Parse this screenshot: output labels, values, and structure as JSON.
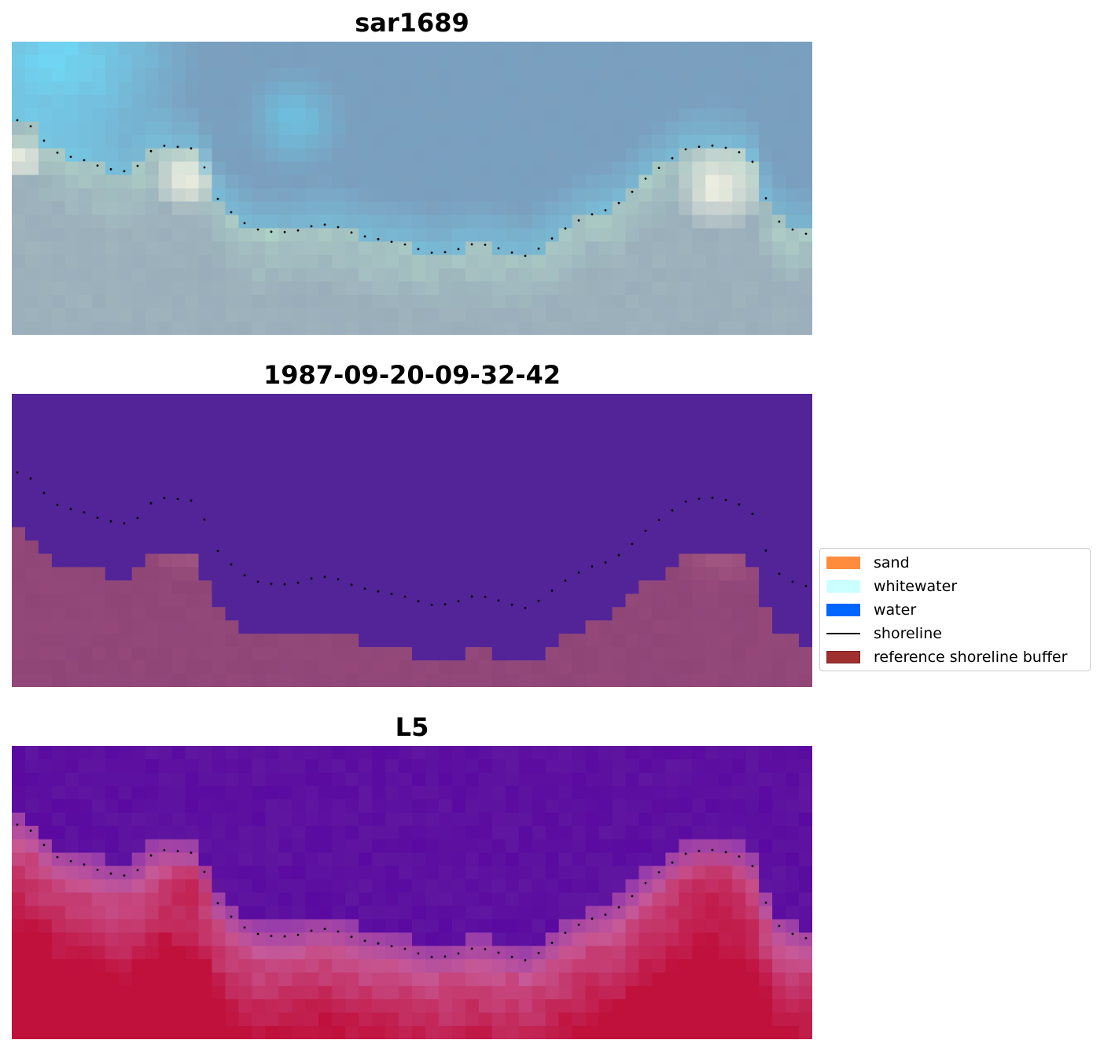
{
  "panels": [
    {
      "title": "sar1689",
      "style": "rgb"
    },
    {
      "title": "1987-09-20-09-32-42",
      "style": "classified"
    },
    {
      "title": "L5",
      "style": "index"
    }
  ],
  "legend": {
    "items": [
      {
        "label": "sand",
        "type": "patch",
        "color": "#ff8c3c"
      },
      {
        "label": "whitewater",
        "type": "patch",
        "color": "#ccffff"
      },
      {
        "label": "water",
        "type": "patch",
        "color": "#0066ff"
      },
      {
        "label": "shoreline",
        "type": "line",
        "color": "#000000"
      },
      {
        "label": "reference shoreline buffer",
        "type": "patch",
        "color": "#a03030"
      }
    ]
  },
  "colors": {
    "rgb_water": "#7aa0c0",
    "rgb_foam": "#fffde8",
    "classified_water": "#522497",
    "classified_sand": "#8f4677",
    "index_low": "#5a0aa0",
    "index_high": "#c0103c"
  }
}
